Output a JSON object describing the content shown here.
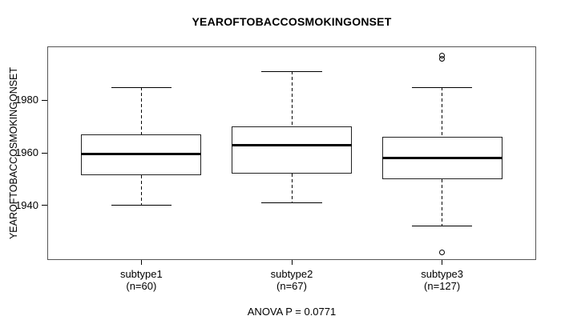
{
  "title": "YEAROFTOBACCOSMOKINGONSET",
  "footer": {
    "annotation": "ANOVA P = 0.0771"
  },
  "colors": {
    "background": "#ffffff",
    "frame": "#555555",
    "box_stroke": "#222222",
    "median": "#000000",
    "text": "#000000"
  },
  "chart_data": {
    "type": "boxplot",
    "title": "YEAROFTOBACCOSMOKINGONSET",
    "ylabel": "YEAROFTOBACCOSMOKINGONSET",
    "xlabel": "",
    "annotation": "ANOVA P = 0.0771",
    "ylim": [
      1919.4,
      2000.3
    ],
    "yticks": [
      1940,
      1960,
      1980
    ],
    "grid": false,
    "legend": "none",
    "categories": [
      "subtype1",
      "subtype2",
      "subtype3"
    ],
    "group_sublabels": [
      "(n=60)",
      "(n=67)",
      "(n=127)"
    ],
    "groups": [
      {
        "label": "subtype1",
        "sublabel": "(n=60)",
        "n": 60,
        "whisker_low": 1940,
        "q1": 1951.5,
        "median": 1959.5,
        "q3": 1967,
        "whisker_high": 1985,
        "outliers": []
      },
      {
        "label": "subtype2",
        "sublabel": "(n=67)",
        "n": 67,
        "whisker_low": 1941,
        "q1": 1952,
        "median": 1963,
        "q3": 1970,
        "whisker_high": 1991,
        "outliers": []
      },
      {
        "label": "subtype3",
        "sublabel": "(n=127)",
        "n": 127,
        "whisker_low": 1932,
        "q1": 1950,
        "median": 1958,
        "q3": 1966,
        "whisker_high": 1985,
        "outliers": [
          1922,
          1996,
          1997
        ]
      }
    ]
  }
}
